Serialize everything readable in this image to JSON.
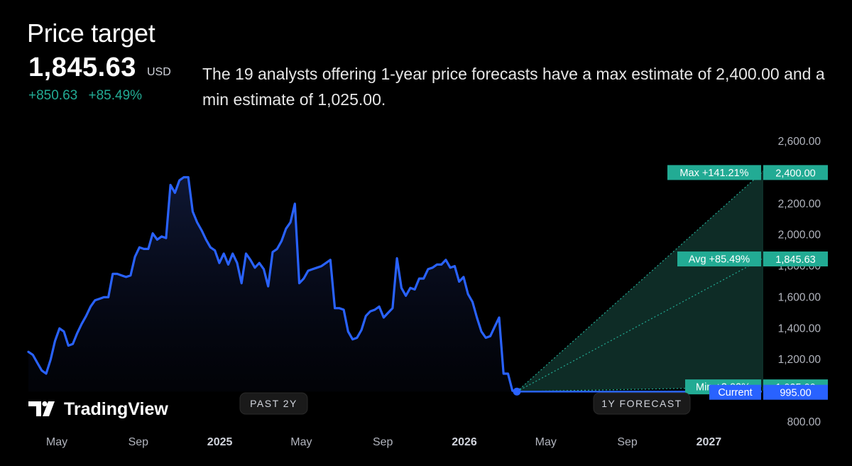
{
  "header": {
    "title": "Price target",
    "price": "1,845.63",
    "currency": "USD",
    "change_abs": "+850.63",
    "change_pct": "+85.49%",
    "description": "The 19 analysts offering 1-year price forecasts have a max estimate of 2,400.00 and a min estimate of 1,025.00."
  },
  "brand": {
    "name": "TradingView"
  },
  "colors": {
    "background": "#000000",
    "price_line": "#2962ff",
    "forecast_green": "#22ab94",
    "forecast_fill": "#0f2e28"
  },
  "chart_data": {
    "type": "line",
    "y_range": [
      800,
      2600
    ],
    "y_ticks": [
      "2,600.00",
      "2,400.00",
      "2,200.00",
      "2,000.00",
      "1,800.00",
      "1,600.00",
      "1,400.00",
      "1,200.00",
      "1,000.00",
      "800.00"
    ],
    "x_ticks": [
      {
        "label": "May",
        "year": false
      },
      {
        "label": "Sep",
        "year": false
      },
      {
        "label": "2025",
        "year": true
      },
      {
        "label": "May",
        "year": false
      },
      {
        "label": "Sep",
        "year": false
      },
      {
        "label": "2026",
        "year": true
      },
      {
        "label": "May",
        "year": false
      },
      {
        "label": "Sep",
        "year": false
      },
      {
        "label": "2027",
        "year": true
      }
    ],
    "periods": {
      "past": "PAST 2Y",
      "forecast": "1Y FORECAST"
    },
    "series": [
      {
        "values": [
          1250,
          1230,
          1180,
          1130,
          1110,
          1200,
          1320,
          1400,
          1380,
          1290,
          1300,
          1370,
          1430,
          1480,
          1540,
          1580,
          1590,
          1600,
          1600,
          1750,
          1750,
          1740,
          1730,
          1740,
          1860,
          1920,
          1910,
          1910,
          2010,
          1970,
          1990,
          1980,
          2320,
          2270,
          2350,
          2370,
          2370,
          2150,
          2080,
          2030,
          1970,
          1920,
          1900,
          1820,
          1880,
          1810,
          1880,
          1820,
          1690,
          1880,
          1840,
          1790,
          1820,
          1780,
          1670,
          1890,
          1910,
          1960,
          2040,
          2080,
          2200,
          1690,
          1720,
          1770,
          1780,
          1790,
          1800,
          1820,
          1840,
          1530,
          1530,
          1520,
          1380,
          1330,
          1340,
          1390,
          1480,
          1510,
          1520,
          1540,
          1470,
          1500,
          1530,
          1850,
          1660,
          1610,
          1660,
          1650,
          1720,
          1720,
          1780,
          1790,
          1810,
          1810,
          1840,
          1790,
          1800,
          1700,
          1730,
          1620,
          1570,
          1470,
          1380,
          1340,
          1350,
          1410,
          1470,
          1110,
          1110,
          1000,
          995
        ]
      }
    ],
    "current": 995.0,
    "forecast": {
      "max": {
        "label": "Max +141.21%",
        "value": 2400.0,
        "value_label": "2,400.00"
      },
      "avg": {
        "label": "Avg +85.49%",
        "value": 1845.63,
        "value_label": "1,845.63"
      },
      "min": {
        "label": "Min +3.02%",
        "value": 1025.0,
        "value_label": "1,025.00"
      },
      "current": {
        "label": "Current",
        "value": 995.0,
        "value_label": "995.00"
      }
    }
  }
}
